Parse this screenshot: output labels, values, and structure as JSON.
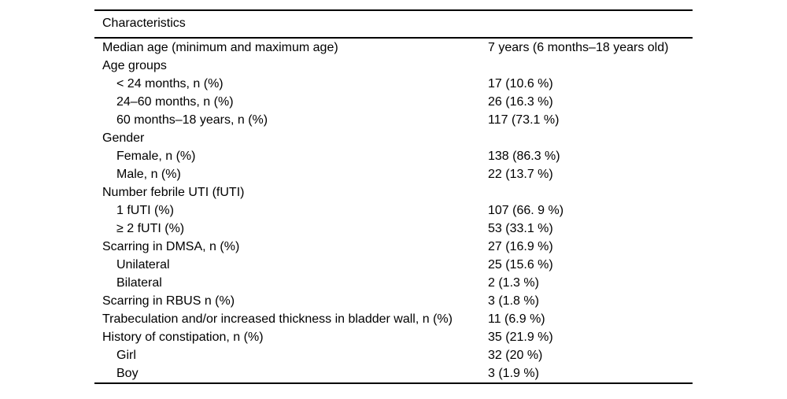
{
  "table": {
    "header": "Characteristics",
    "rows": [
      {
        "label": "Median age (minimum and maximum age)",
        "value": "7 years (6 months–18 years old)",
        "indent": 0
      },
      {
        "label": "Age groups",
        "value": "",
        "indent": 0
      },
      {
        "label": "< 24 months, n (%)",
        "value": "17 (10.6 %)",
        "indent": 1
      },
      {
        "label": "24–60 months, n (%)",
        "value": "26 (16.3 %)",
        "indent": 1
      },
      {
        "label": "60 months–18 years, n (%)",
        "value": "117 (73.1 %)",
        "indent": 1
      },
      {
        "label": "Gender",
        "value": "",
        "indent": 0
      },
      {
        "label": "Female, n (%)",
        "value": "138 (86.3 %)",
        "indent": 1
      },
      {
        "label": "Male, n (%)",
        "value": "22 (13.7 %)",
        "indent": 1
      },
      {
        "label": "Number febrile UTI (fUTI)",
        "value": "",
        "indent": 0
      },
      {
        "label": "1 fUTI (%)",
        "value": "107 (66. 9 %)",
        "indent": 1
      },
      {
        "label": "≥ 2 fUTI (%)",
        "value": "53 (33.1 %)",
        "indent": 1
      },
      {
        "label": "Scarring in DMSA, n (%)",
        "value": "27 (16.9 %)",
        "indent": 0
      },
      {
        "label": "Unilateral",
        "value": "25 (15.6 %)",
        "indent": 1
      },
      {
        "label": "Bilateral",
        "value": "2 (1.3 %)",
        "indent": 1
      },
      {
        "label": "Scarring in RBUS n (%)",
        "value": "3 (1.8 %)",
        "indent": 0
      },
      {
        "label": "Trabeculation and/or increased thickness in bladder wall, n (%)",
        "value": "11 (6.9 %)",
        "indent": 0
      },
      {
        "label": "History of constipation, n (%)",
        "value": "35 (21.9 %)",
        "indent": 0
      },
      {
        "label": "Girl",
        "value": "32 (20 %)",
        "indent": 1
      },
      {
        "label": "Boy",
        "value": "3 (1.9 %)",
        "indent": 1
      }
    ]
  }
}
